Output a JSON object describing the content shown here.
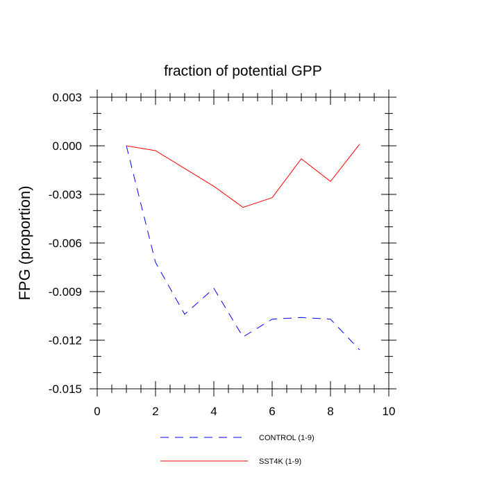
{
  "chart_data": {
    "type": "line",
    "title": "fraction of potential GPP",
    "xlabel": "",
    "ylabel": "FPG  (proportion)",
    "xlim": [
      0,
      10
    ],
    "ylim": [
      -0.015,
      0.003
    ],
    "x_ticks": [
      0,
      2,
      4,
      6,
      8,
      10
    ],
    "x_tick_labels": [
      "0",
      "2",
      "4",
      "6",
      "8",
      "10"
    ],
    "y_ticks": [
      0.003,
      0.0,
      -0.003,
      -0.006,
      -0.009,
      -0.012,
      -0.015
    ],
    "y_tick_labels": [
      "0.003",
      "0.000",
      "-0.003",
      "-0.006",
      "-0.009",
      "-0.012",
      "-0.015"
    ],
    "grid": false,
    "legend_position": "bottom",
    "series": [
      {
        "name": "CONTROL (1-9)",
        "color": "#0000ff",
        "dash": "dashed",
        "x": [
          1,
          2,
          3,
          4,
          5,
          6,
          7,
          8,
          9
        ],
        "values": [
          0.0,
          -0.0072,
          -0.0104,
          -0.0088,
          -0.0118,
          -0.0107,
          -0.0106,
          -0.0107,
          -0.0126
        ]
      },
      {
        "name": "SST4K (1-9)",
        "color": "#ff0000",
        "dash": "solid",
        "x": [
          1,
          2,
          3,
          4,
          5,
          6,
          7,
          8,
          9
        ],
        "values": [
          0.0,
          -0.0003,
          -0.0014,
          -0.0025,
          -0.0038,
          -0.0032,
          -0.0008,
          -0.0022,
          0.0001
        ]
      }
    ]
  }
}
